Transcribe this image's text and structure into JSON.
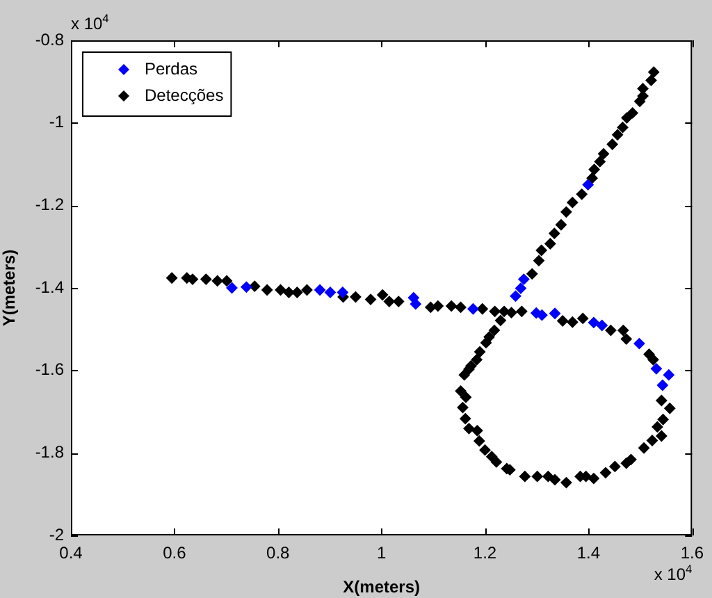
{
  "chart_data": {
    "type": "scatter",
    "xlabel": "X(meters)",
    "ylabel": "Y(meters)",
    "annotations": [
      "x 10$^{4}$",
      "x 10$^{4}$"
    ],
    "xlim": [
      0.4,
      1.6
    ],
    "xticks": [
      0.4,
      0.6,
      0.8,
      1,
      1.2,
      1.4,
      1.6
    ],
    "ylim": [
      -2,
      -0.8
    ],
    "yticks": [
      -2,
      -1.8,
      -1.6,
      -1.4,
      -1.2,
      -1,
      -0.8
    ],
    "grid": false,
    "legend": "top left",
    "marker": "diamond",
    "series": [
      {
        "name": "Perdas",
        "color": "#0000ff",
        "x": [
          0.711,
          0.739,
          0.881,
          0.901,
          0.925,
          1.062,
          1.066,
          1.177,
          1.299,
          1.31,
          1.335,
          1.41,
          1.426,
          1.498,
          1.531,
          1.555,
          1.543,
          1.259,
          1.269,
          1.275,
          1.399
        ],
        "values": [
          -1.4,
          -1.398,
          -1.405,
          -1.411,
          -1.411,
          -1.424,
          -1.439,
          -1.451,
          -1.461,
          -1.466,
          -1.462,
          -1.484,
          -1.491,
          -1.535,
          -1.596,
          -1.611,
          -1.636,
          -1.42,
          -1.401,
          -1.379,
          -1.15
        ]
      },
      {
        "name": "Detecções",
        "color": "#000000",
        "x": [
          0.595,
          0.624,
          0.635,
          0.661,
          0.683,
          0.701,
          0.755,
          0.779,
          0.805,
          0.821,
          0.837,
          0.856,
          0.926,
          0.95,
          0.979,
          1.002,
          1.015,
          1.033,
          1.095,
          1.109,
          1.135,
          1.153,
          1.195,
          1.219,
          1.237,
          1.271,
          1.35,
          1.369,
          1.389,
          1.443,
          1.467,
          1.473,
          1.517,
          1.525,
          1.541,
          1.557,
          1.544,
          1.533,
          1.541,
          1.523,
          1.507,
          1.482,
          1.473,
          1.451,
          1.433,
          1.41,
          1.395,
          1.384,
          1.357,
          1.335,
          1.322,
          1.301,
          1.277,
          1.248,
          1.242,
          1.222,
          1.213,
          1.2,
          1.189,
          1.185,
          1.169,
          1.162,
          1.157,
          1.163,
          1.153,
          1.16,
          1.169,
          1.173,
          1.184,
          1.19,
          1.202,
          1.208,
          1.218,
          1.23,
          1.251,
          1.291,
          1.304,
          1.309,
          1.326,
          1.334,
          1.347,
          1.357,
          1.369,
          1.387,
          1.407,
          1.411,
          1.422,
          1.429,
          1.446,
          1.456,
          1.466,
          1.474,
          1.485,
          1.499,
          1.505,
          1.505,
          1.521,
          1.526
        ],
        "values": [
          -1.376,
          -1.376,
          -1.379,
          -1.379,
          -1.383,
          -1.383,
          -1.396,
          -1.405,
          -1.405,
          -1.411,
          -1.411,
          -1.405,
          -1.422,
          -1.422,
          -1.428,
          -1.417,
          -1.433,
          -1.433,
          -1.447,
          -1.444,
          -1.444,
          -1.447,
          -1.451,
          -1.457,
          -1.457,
          -1.457,
          -1.48,
          -1.483,
          -1.474,
          -1.503,
          -1.503,
          -1.524,
          -1.561,
          -1.574,
          -1.673,
          -1.692,
          -1.719,
          -1.737,
          -1.759,
          -1.77,
          -1.788,
          -1.816,
          -1.825,
          -1.833,
          -1.848,
          -1.862,
          -1.857,
          -1.857,
          -1.872,
          -1.865,
          -1.857,
          -1.857,
          -1.857,
          -1.841,
          -1.838,
          -1.822,
          -1.809,
          -1.793,
          -1.771,
          -1.746,
          -1.741,
          -1.717,
          -1.69,
          -1.665,
          -1.65,
          -1.611,
          -1.597,
          -1.589,
          -1.574,
          -1.555,
          -1.533,
          -1.519,
          -1.503,
          -1.479,
          -1.46,
          -1.366,
          -1.334,
          -1.309,
          -1.293,
          -1.268,
          -1.247,
          -1.216,
          -1.193,
          -1.173,
          -1.134,
          -1.113,
          -1.094,
          -1.075,
          -1.052,
          -1.029,
          -1.011,
          -0.988,
          -0.976,
          -0.948,
          -0.935,
          -0.917,
          -0.897,
          -0.877
        ]
      }
    ]
  }
}
